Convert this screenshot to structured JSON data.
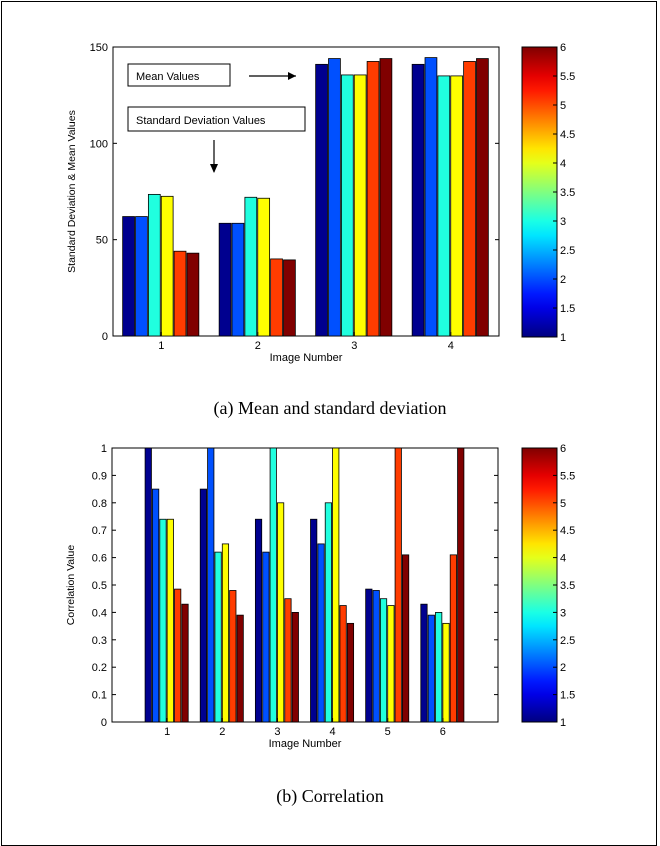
{
  "figure": {
    "caption_a": "(a) Mean and standard deviation",
    "caption_b": "(b) Correlation"
  },
  "chart_data": [
    {
      "type": "bar",
      "xlabel": "Image Number",
      "ylabel": "Standard Deviation & Mean Values",
      "categories": [
        "1",
        "2",
        "3",
        "4"
      ],
      "ylim": [
        0,
        150
      ],
      "yticks": [
        0,
        50,
        100,
        150
      ],
      "series": [
        {
          "values": [
            62,
            58.5,
            141,
            141
          ]
        },
        {
          "values": [
            62,
            58.5,
            144,
            144.5
          ]
        },
        {
          "values": [
            73.5,
            72,
            135.5,
            135
          ]
        },
        {
          "values": [
            72.5,
            71.5,
            135.5,
            135
          ]
        },
        {
          "values": [
            44,
            40,
            142.5,
            142.5
          ]
        },
        {
          "values": [
            43,
            39.5,
            144,
            144
          ]
        }
      ],
      "annotations": [
        {
          "text": "Mean Values",
          "arrow": "right"
        },
        {
          "text": "Standard Deviation Values",
          "arrow": "down"
        }
      ],
      "colorbar": {
        "ticks": [
          "1",
          "1.5",
          "2",
          "2.5",
          "3",
          "3.5",
          "4",
          "4.5",
          "5",
          "5.5",
          "6"
        ],
        "colormap": "jet"
      },
      "grid": false
    },
    {
      "type": "bar",
      "xlabel": "Image Number",
      "ylabel": "Correlation Value",
      "categories": [
        "1",
        "2",
        "3",
        "4",
        "5",
        "6"
      ],
      "ylim": [
        0,
        1
      ],
      "yticks": [
        "0",
        "0.1",
        "0.2",
        "0.3",
        "0.4",
        "0.5",
        "0.6",
        "0.7",
        "0.8",
        "0.9",
        "1"
      ],
      "series": [
        {
          "values": [
            1.0,
            0.85,
            0.74,
            0.74,
            0.485,
            0.43
          ]
        },
        {
          "values": [
            0.85,
            1.0,
            0.62,
            0.65,
            0.48,
            0.39
          ]
        },
        {
          "values": [
            0.74,
            0.62,
            1.0,
            0.8,
            0.45,
            0.4
          ]
        },
        {
          "values": [
            0.74,
            0.65,
            0.8,
            1.0,
            0.425,
            0.36
          ]
        },
        {
          "values": [
            0.485,
            0.48,
            0.45,
            0.425,
            1.0,
            0.61
          ]
        },
        {
          "values": [
            0.43,
            0.39,
            0.4,
            0.36,
            0.61,
            1.0
          ]
        }
      ],
      "colorbar": {
        "ticks": [
          "1",
          "1.5",
          "2",
          "2.5",
          "3",
          "3.5",
          "4",
          "4.5",
          "5",
          "5.5",
          "6"
        ],
        "colormap": "jet"
      },
      "grid": false
    }
  ],
  "colors": {
    "series": [
      "#00008f",
      "#0050ff",
      "#20ffdf",
      "#ffff00",
      "#ff3c00",
      "#800000"
    ]
  }
}
